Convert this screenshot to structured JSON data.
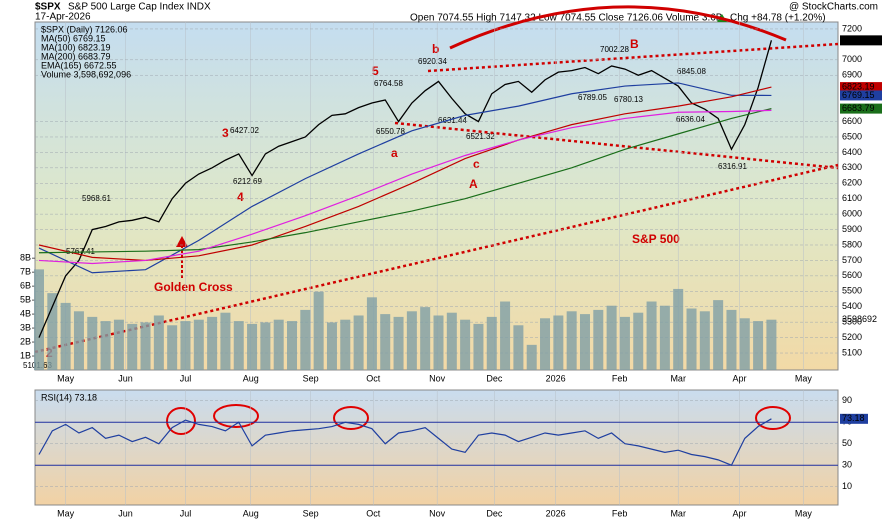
{
  "chart_data": [
    {
      "type": "line",
      "title": "$SPX",
      "subtitle": "S&P 500 Large Cap Index INDX",
      "date": "17-Apr-2026",
      "quote": "Open 7074.55 High 7147.32 Low 7074.55 Close 7126.06 Volume 3.6B",
      "change": "Chg +84.78 (+1.20%)",
      "credit": "@ StockCharts.com",
      "xlim": [
        -0.3,
        60
      ],
      "xticks": [
        {
          "value": 2,
          "label": "May"
        },
        {
          "value": 6.5,
          "label": "Jun"
        },
        {
          "value": 11,
          "label": "Jul"
        },
        {
          "value": 15.9,
          "label": "Aug"
        },
        {
          "value": 20.4,
          "label": "Sep"
        },
        {
          "value": 25.1,
          "label": "Oct"
        },
        {
          "value": 29.9,
          "label": "Nov"
        },
        {
          "value": 34.2,
          "label": "Dec"
        },
        {
          "value": 38.8,
          "label": "2026"
        },
        {
          "value": 43.6,
          "label": "Feb"
        },
        {
          "value": 48,
          "label": "Mar"
        },
        {
          "value": 52.6,
          "label": "Apr"
        },
        {
          "value": 57.4,
          "label": "May"
        }
      ],
      "ylim": [
        4990,
        7245
      ],
      "yticks": [
        5100,
        5200,
        5300,
        5400,
        5500,
        5600,
        5700,
        5800,
        5900,
        6000,
        6100,
        6200,
        6300,
        6400,
        6500,
        6600,
        6900,
        7000,
        7200
      ],
      "y2lim": [
        0,
        24.9
      ],
      "y2ticks": [
        {
          "value": 1,
          "label": "1B"
        },
        {
          "value": 2,
          "label": "2B"
        },
        {
          "value": 3,
          "label": "3B"
        },
        {
          "value": 4,
          "label": "4B"
        },
        {
          "value": 5,
          "label": "5B"
        },
        {
          "value": 6,
          "label": "6B"
        },
        {
          "value": 7,
          "label": "7B"
        },
        {
          "value": 8,
          "label": "8B"
        }
      ],
      "grid": true,
      "series": [
        {
          "name": "$SPX (Daily) 7126.06",
          "color": "#000000",
          "x": [
            0,
            1,
            2,
            3,
            4,
            5,
            6,
            7,
            8,
            9,
            10,
            11,
            12,
            13,
            14,
            15,
            16,
            17,
            18,
            19,
            20,
            21,
            22,
            23,
            24,
            25,
            26,
            27,
            28,
            29,
            30,
            31,
            32,
            33,
            34,
            35,
            36,
            37,
            38,
            39,
            40,
            41,
            42,
            43,
            44,
            45,
            46,
            47,
            48,
            49,
            50,
            51,
            52,
            53,
            54,
            55
          ],
          "values": [
            5200,
            5400,
            5600,
            5700,
            5900,
            5920,
            5950,
            5960,
            5980,
            5950,
            6100,
            6200,
            6260,
            6300,
            6350,
            6390,
            6250,
            6390,
            6440,
            6470,
            6500,
            6580,
            6640,
            6650,
            6690,
            6720,
            6740,
            6600,
            6720,
            6800,
            6860,
            6750,
            6650,
            6600,
            6780,
            6840,
            6860,
            6790,
            6870,
            6920,
            6930,
            6950,
            6910,
            6960,
            6940,
            6900,
            6930,
            6880,
            6830,
            6720,
            6680,
            6620,
            6420,
            6580,
            6820,
            7126.06
          ]
        },
        {
          "name": "MA(50) 6769.15",
          "color": "#1f3fa0",
          "x": [
            0,
            4,
            8,
            12,
            16,
            20,
            24,
            28,
            32,
            36,
            40,
            44,
            48,
            52,
            55
          ],
          "values": [
            5780,
            5620,
            5640,
            5830,
            6050,
            6230,
            6390,
            6540,
            6640,
            6700,
            6780,
            6830,
            6850,
            6770,
            6769.15
          ]
        },
        {
          "name": "MA(100) 6823.19",
          "color": "#c00000",
          "x": [
            0,
            4,
            8,
            12,
            16,
            20,
            24,
            28,
            32,
            36,
            40,
            44,
            48,
            52,
            55
          ],
          "values": [
            5800,
            5720,
            5700,
            5730,
            5800,
            5920,
            6050,
            6200,
            6360,
            6480,
            6580,
            6650,
            6700,
            6760,
            6823.19
          ]
        },
        {
          "name": "MA(200) 6683.79",
          "color": "#1a6e1a",
          "x": [
            0,
            4,
            8,
            12,
            16,
            20,
            24,
            28,
            32,
            36,
            40,
            44,
            48,
            52,
            55
          ],
          "values": [
            5750,
            5755,
            5760,
            5770,
            5820,
            5880,
            5950,
            6020,
            6100,
            6200,
            6300,
            6420,
            6520,
            6620,
            6683.79
          ]
        },
        {
          "name": "EMA(165) 6672.55",
          "color": "#e020e0",
          "x": [
            0,
            4,
            8,
            12,
            16,
            20,
            24,
            28,
            32,
            36,
            40,
            44,
            48,
            52,
            55
          ],
          "values": [
            5700,
            5680,
            5700,
            5760,
            5870,
            5990,
            6120,
            6260,
            6380,
            6480,
            6560,
            6620,
            6660,
            6665,
            6672.55
          ]
        },
        {
          "name": "Volume 3,598,692,096",
          "color": "#7f9fa6",
          "type": "bar",
          "axis": "y2",
          "x": [
            0,
            1,
            2,
            3,
            4,
            5,
            6,
            7,
            8,
            9,
            10,
            11,
            12,
            13,
            14,
            15,
            16,
            17,
            18,
            19,
            20,
            21,
            22,
            23,
            24,
            25,
            26,
            27,
            28,
            29,
            30,
            31,
            32,
            33,
            34,
            35,
            36,
            37,
            38,
            39,
            40,
            41,
            42,
            43,
            44,
            45,
            46,
            47,
            48,
            49,
            50,
            51,
            52,
            53,
            54,
            55
          ],
          "values": [
            7.2,
            5.5,
            4.8,
            4.2,
            3.8,
            3.5,
            3.6,
            3.3,
            3.4,
            3.9,
            3.2,
            3.5,
            3.6,
            3.8,
            4.1,
            3.5,
            3.3,
            3.4,
            3.6,
            3.5,
            4.3,
            5.6,
            3.4,
            3.6,
            3.9,
            5.2,
            4.0,
            3.8,
            4.2,
            4.5,
            3.9,
            4.1,
            3.6,
            3.3,
            3.8,
            4.9,
            3.2,
            1.8,
            3.7,
            3.9,
            4.2,
            4.0,
            4.3,
            4.6,
            3.8,
            4.1,
            4.9,
            4.6,
            5.8,
            4.4,
            4.2,
            5.0,
            4.3,
            3.7,
            3.5,
            3.6
          ]
        }
      ],
      "flags": [
        7126.06,
        6823.19,
        6769.15,
        6683.79
      ],
      "flag_colors": [
        "#000000",
        "#c00000",
        "#1f3fa0",
        "#1a6e1a"
      ],
      "volume_label": "3598692",
      "wave_labels": [
        "b",
        "B",
        "5",
        "3",
        "4",
        "a",
        "c",
        "A",
        "2"
      ],
      "price_labels": [
        6920.34,
        7002.28,
        6764.58,
        6427.02,
        6212.69,
        5968.61,
        5767.41,
        5101.63,
        6550.78,
        6631.44,
        6521.32,
        6789.05,
        6780.13,
        6845.08,
        6636.04,
        6316.91
      ],
      "notes": [
        "S&P 500",
        "Golden Cross"
      ]
    },
    {
      "type": "line",
      "xlim": [
        -0.3,
        60
      ],
      "xticks": [
        {
          "value": 2,
          "label": "May"
        },
        {
          "value": 6.5,
          "label": "Jun"
        },
        {
          "value": 11,
          "label": "Jul"
        },
        {
          "value": 15.9,
          "label": "Aug"
        },
        {
          "value": 20.4,
          "label": "Sep"
        },
        {
          "value": 25.1,
          "label": "Oct"
        },
        {
          "value": 29.9,
          "label": "Nov"
        },
        {
          "value": 34.2,
          "label": "Dec"
        },
        {
          "value": 38.8,
          "label": "2026"
        },
        {
          "value": 43.6,
          "label": "Feb"
        },
        {
          "value": 48,
          "label": "Mar"
        },
        {
          "value": 52.6,
          "label": "Apr"
        },
        {
          "value": 57.4,
          "label": "May"
        }
      ],
      "ylim": [
        -7,
        100
      ],
      "yticks": [
        10,
        30,
        50,
        70,
        90
      ],
      "bands": [
        30,
        70
      ],
      "grid": true,
      "series": [
        {
          "name": "RSI(14) 73.18",
          "color": "#1f3fa0",
          "x": [
            0,
            1,
            2,
            3,
            4,
            5,
            6,
            7,
            8,
            9,
            10,
            11,
            12,
            13,
            14,
            15,
            16,
            17,
            18,
            19,
            20,
            21,
            22,
            23,
            24,
            25,
            26,
            27,
            28,
            29,
            30,
            31,
            32,
            33,
            34,
            35,
            36,
            37,
            38,
            39,
            40,
            41,
            42,
            43,
            44,
            45,
            46,
            47,
            48,
            49,
            50,
            51,
            52,
            53,
            54,
            55
          ],
          "values": [
            40,
            62,
            68,
            60,
            65,
            55,
            58,
            52,
            56,
            50,
            65,
            72,
            68,
            66,
            62,
            70,
            48,
            58,
            60,
            62,
            63,
            64,
            66,
            70,
            68,
            64,
            50,
            60,
            62,
            65,
            55,
            45,
            42,
            58,
            60,
            58,
            52,
            56,
            60,
            58,
            60,
            62,
            55,
            60,
            50,
            48,
            45,
            42,
            44,
            40,
            38,
            35,
            30,
            55,
            66,
            73.18
          ]
        }
      ]
    }
  ]
}
